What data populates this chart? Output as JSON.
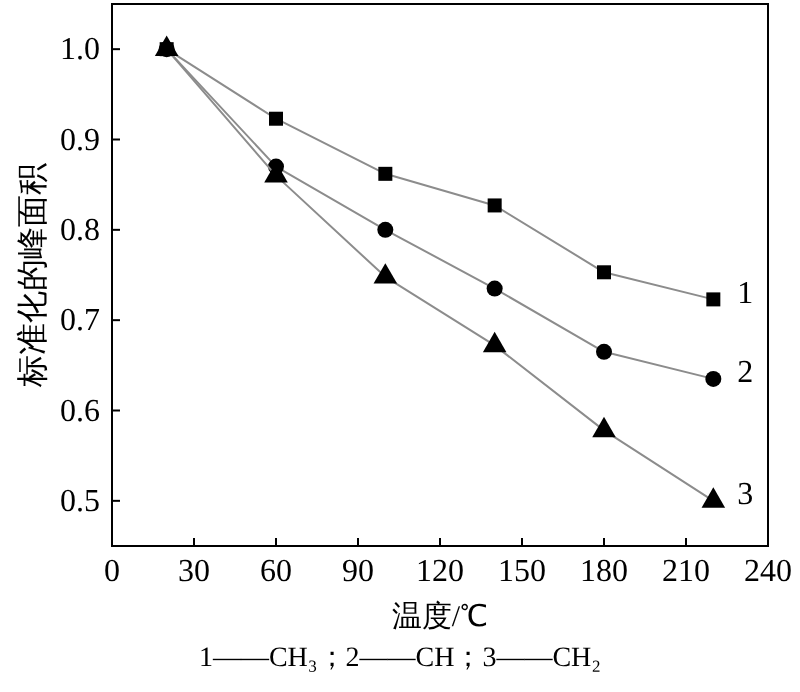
{
  "chart_data": {
    "type": "line",
    "xlabel": "温度/℃",
    "ylabel": "标准化的峰面积",
    "x": [
      20,
      60,
      100,
      140,
      180,
      220
    ],
    "series": [
      {
        "name": "1",
        "color": "#000000",
        "marker": "square",
        "values": [
          1.0,
          0.923,
          0.862,
          0.827,
          0.753,
          0.723
        ]
      },
      {
        "name": "2",
        "color": "#000000",
        "marker": "circle",
        "values": [
          1.0,
          0.87,
          0.8,
          0.735,
          0.665,
          0.635
        ]
      },
      {
        "name": "3",
        "color": "#000000",
        "marker": "triangle",
        "values": [
          1.0,
          0.86,
          0.748,
          0.672,
          0.578,
          0.5
        ]
      }
    ],
    "xlim": [
      0,
      240
    ],
    "xticks": [
      0,
      30,
      60,
      90,
      120,
      150,
      180,
      210,
      240
    ],
    "ylim": [
      0.45,
      1.05
    ],
    "yticks": [
      {
        "value": 0.5,
        "label": "0.5"
      },
      {
        "value": 0.6,
        "label": "0.6"
      },
      {
        "value": 0.7,
        "label": "0.7"
      },
      {
        "value": 0.8,
        "label": "0.8"
      },
      {
        "value": 0.9,
        "label": "0.9"
      },
      {
        "value": 1.0,
        "label": "1.0"
      }
    ],
    "grid": false,
    "annotations": [
      "1——CH₃；2——CH；3——CH₂"
    ]
  }
}
